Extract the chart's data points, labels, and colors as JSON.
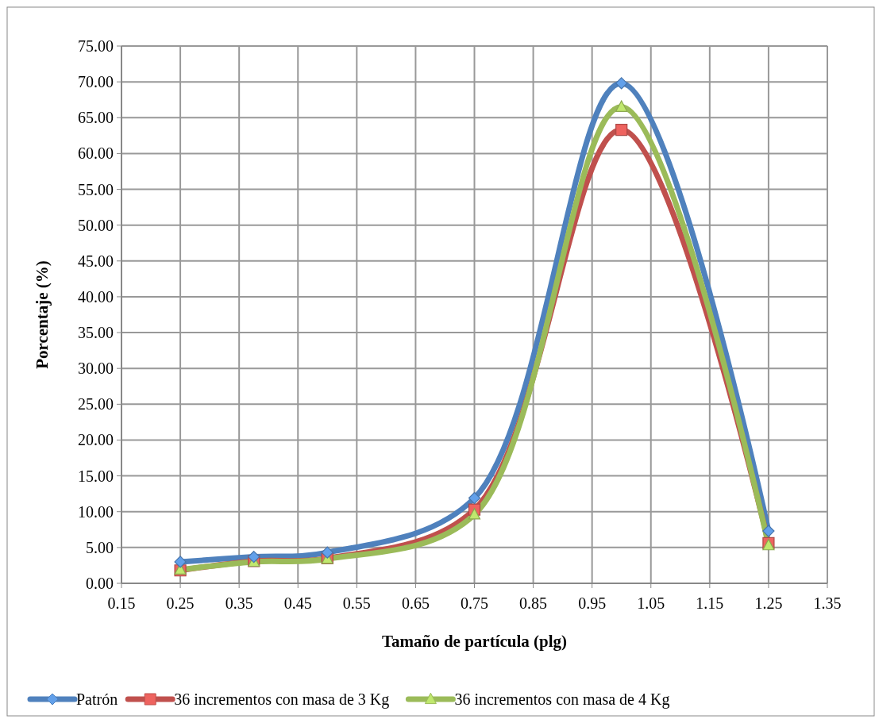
{
  "chart_data": {
    "type": "line",
    "xlabel": "Tamaño de partícula (plg)",
    "ylabel": "Porcentaje (%)",
    "x": [
      0.25,
      0.375,
      0.5,
      0.75,
      1.0,
      1.25
    ],
    "series": [
      {
        "name": "Patrón",
        "color": "#4f81bd",
        "marker": "diamond",
        "values": [
          3.0,
          3.7,
          4.3,
          11.9,
          69.8,
          7.3
        ]
      },
      {
        "name": "36 incrementos con masa de 3 Kg",
        "color": "#c0504d",
        "marker": "square",
        "values": [
          1.8,
          3.1,
          3.5,
          10.3,
          63.3,
          5.6
        ]
      },
      {
        "name": "36 incrementos con masa de 4 Kg",
        "color": "#9bbb59",
        "marker": "triangle",
        "values": [
          1.9,
          3.0,
          3.4,
          9.6,
          66.5,
          5.3
        ]
      }
    ],
    "xlim": [
      0.15,
      1.35
    ],
    "xticks": [
      0.15,
      0.25,
      0.35,
      0.45,
      0.55,
      0.65,
      0.75,
      0.85,
      0.95,
      1.05,
      1.15,
      1.25,
      1.35
    ],
    "ylim": [
      0,
      75
    ],
    "yticks": [
      {
        "value": 0,
        "label": "0.00"
      },
      {
        "value": 5,
        "label": "5.00"
      },
      {
        "value": 10,
        "label": "10.00"
      },
      {
        "value": 15,
        "label": "15.00"
      },
      {
        "value": 20,
        "label": "20.00"
      },
      {
        "value": 25,
        "label": "25.00"
      },
      {
        "value": 30,
        "label": "30.00"
      },
      {
        "value": 35,
        "label": "35.00"
      },
      {
        "value": 40,
        "label": "40.00"
      },
      {
        "value": 45,
        "label": "45.00"
      },
      {
        "value": 50,
        "label": "50.00"
      },
      {
        "value": 55,
        "label": "55.00"
      },
      {
        "value": 60,
        "label": "60.00"
      },
      {
        "value": 65,
        "label": "65.00"
      },
      {
        "value": 70,
        "label": "70.00"
      },
      {
        "value": 75,
        "label": "75.00"
      }
    ],
    "grid": true,
    "legend": "bottom",
    "line_style": "solid"
  }
}
